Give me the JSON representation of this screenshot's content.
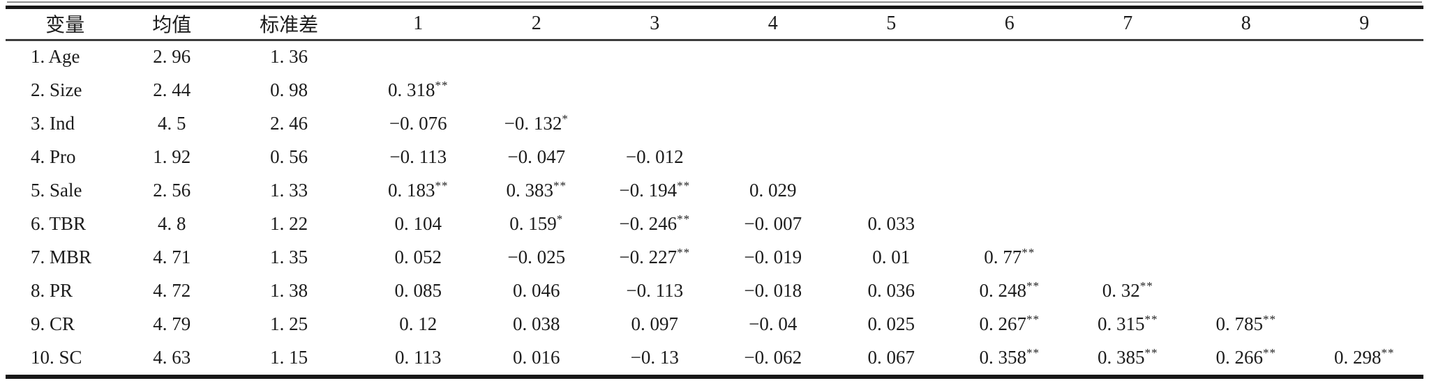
{
  "page": {
    "background_color": "#ffffff",
    "text_color": "#1c1c1c",
    "rule_color": "#171717"
  },
  "table": {
    "columns": [
      "变量",
      "均值",
      "标准差",
      "1",
      "2",
      "3",
      "4",
      "5",
      "6",
      "7",
      "8",
      "9"
    ],
    "rows": [
      [
        "1. Age",
        "2. 96",
        "1. 36",
        "",
        "",
        "",
        "",
        "",
        "",
        "",
        "",
        ""
      ],
      [
        "2. Size",
        "2. 44",
        "0. 98",
        "0. 318**",
        "",
        "",
        "",
        "",
        "",
        "",
        "",
        ""
      ],
      [
        "3. Ind",
        "4. 5",
        "2. 46",
        "−0. 076",
        "−0. 132*",
        "",
        "",
        "",
        "",
        "",
        "",
        ""
      ],
      [
        "4. Pro",
        "1. 92",
        "0. 56",
        "−0. 113",
        "−0. 047",
        "−0. 012",
        "",
        "",
        "",
        "",
        "",
        ""
      ],
      [
        "5. Sale",
        "2. 56",
        "1. 33",
        "0. 183**",
        "0. 383**",
        "−0. 194**",
        "0. 029",
        "",
        "",
        "",
        "",
        ""
      ],
      [
        "6. TBR",
        "4. 8",
        "1. 22",
        "0. 104",
        "0. 159*",
        "−0. 246**",
        "−0. 007",
        "0. 033",
        "",
        "",
        "",
        ""
      ],
      [
        "7. MBR",
        "4. 71",
        "1. 35",
        "0. 052",
        "−0. 025",
        "−0. 227**",
        "−0. 019",
        "0. 01",
        "0. 77**",
        "",
        "",
        ""
      ],
      [
        "8. PR",
        "4. 72",
        "1. 38",
        "0. 085",
        "0. 046",
        "−0. 113",
        "−0. 018",
        "0. 036",
        "0. 248**",
        "0. 32**",
        "",
        ""
      ],
      [
        "9. CR",
        "4. 79",
        "1. 25",
        "0. 12",
        "0. 038",
        "0. 097",
        "−0. 04",
        "0. 025",
        "0. 267**",
        "0. 315**",
        "0. 785**",
        ""
      ],
      [
        "10. SC",
        "4. 63",
        "1. 15",
        "0. 113",
        "0. 016",
        "−0. 13",
        "−0. 062",
        "0. 067",
        "0. 358**",
        "0. 385**",
        "0. 266**",
        "0. 298**"
      ]
    ]
  }
}
